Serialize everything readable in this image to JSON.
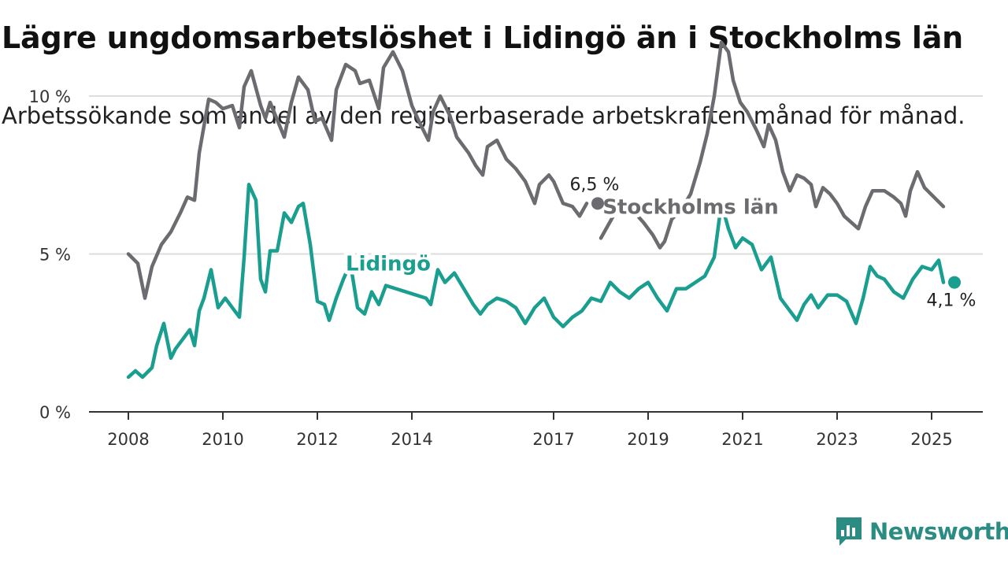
{
  "title": "Lägre ungdomsarbetslöshet i Lidingö än i Stockholms län",
  "subtitle": "Arbetssökande som andel av den registerbaserade arbetskraften månad för månad.",
  "brand": "Newsworthy",
  "colors": {
    "lidingo": "#1a9e8f",
    "stockholm": "#6b6b70",
    "grid": "#dddddd",
    "axis": "#333333",
    "brand": "#2a8c83"
  },
  "chart_data": {
    "type": "line",
    "x_unit": "year (decimal)",
    "y_unit": "percent",
    "xlim": [
      2007.8,
      2026.1
    ],
    "ylim": [
      0,
      12
    ],
    "y_ticks": [
      {
        "value": 0,
        "label": "0 %"
      },
      {
        "value": 5,
        "label": "5 %"
      },
      {
        "value": 10,
        "label": "10 %"
      }
    ],
    "x_ticks": [
      {
        "value": 2008,
        "label": "2008"
      },
      {
        "value": 2010,
        "label": "2010"
      },
      {
        "value": 2012,
        "label": "2012"
      },
      {
        "value": 2014,
        "label": "2014"
      },
      {
        "value": 2017,
        "label": "2017"
      },
      {
        "value": 2019,
        "label": "2019"
      },
      {
        "value": 2021,
        "label": "2021"
      },
      {
        "value": 2023,
        "label": "2023"
      },
      {
        "value": 2025,
        "label": "2025"
      }
    ],
    "grid": true,
    "series": [
      {
        "name": "Stockholms län",
        "color": "#6b6b70",
        "end_label": "6,5 %",
        "points": [
          [
            2008.0,
            5.0
          ],
          [
            2008.2,
            4.7
          ],
          [
            2008.35,
            3.6
          ],
          [
            2008.5,
            4.6
          ],
          [
            2008.7,
            5.3
          ],
          [
            2008.9,
            5.7
          ],
          [
            2009.1,
            6.3
          ],
          [
            2009.25,
            6.8
          ],
          [
            2009.4,
            6.7
          ],
          [
            2009.5,
            8.2
          ],
          [
            2009.7,
            9.9
          ],
          [
            2009.85,
            9.8
          ],
          [
            2010.0,
            9.6
          ],
          [
            2010.2,
            9.7
          ],
          [
            2010.35,
            9.0
          ],
          [
            2010.45,
            10.3
          ],
          [
            2010.6,
            10.8
          ],
          [
            2010.8,
            9.7
          ],
          [
            2010.9,
            9.3
          ],
          [
            2011.0,
            9.8
          ],
          [
            2011.3,
            8.7
          ],
          [
            2011.45,
            9.8
          ],
          [
            2011.6,
            10.6
          ],
          [
            2011.8,
            10.2
          ],
          [
            2011.95,
            9.2
          ],
          [
            2012.1,
            9.3
          ],
          [
            2012.3,
            8.6
          ],
          [
            2012.4,
            10.2
          ],
          [
            2012.6,
            11.0
          ],
          [
            2012.8,
            10.8
          ],
          [
            2012.9,
            10.4
          ],
          [
            2013.1,
            10.5
          ],
          [
            2013.3,
            9.6
          ],
          [
            2013.4,
            10.9
          ],
          [
            2013.6,
            11.4
          ],
          [
            2013.8,
            10.8
          ],
          [
            2014.0,
            9.7
          ],
          [
            2014.15,
            9.2
          ],
          [
            2014.35,
            8.6
          ],
          [
            2014.45,
            9.5
          ],
          [
            2014.6,
            10.0
          ],
          [
            2014.8,
            9.4
          ],
          [
            2014.95,
            8.7
          ],
          [
            2015.2,
            8.2
          ],
          [
            2015.35,
            7.8
          ],
          [
            2015.5,
            7.5
          ],
          [
            2015.6,
            8.4
          ],
          [
            2015.8,
            8.6
          ],
          [
            2016.0,
            8.0
          ],
          [
            2016.2,
            7.7
          ],
          [
            2016.4,
            7.3
          ],
          [
            2016.6,
            6.6
          ],
          [
            2016.7,
            7.2
          ],
          [
            2016.9,
            7.5
          ],
          [
            2017.0,
            7.3
          ],
          [
            2017.2,
            6.6
          ],
          [
            2017.4,
            6.5
          ],
          [
            2017.55,
            6.2
          ],
          [
            2017.7,
            6.6
          ]
        ]
      },
      {
        "name": "Lidingö",
        "color": "#1a9e8f",
        "end_label": "4,1 %",
        "points": [
          [
            2008.0,
            1.1
          ],
          [
            2008.15,
            1.3
          ],
          [
            2008.3,
            1.1
          ],
          [
            2008.5,
            1.4
          ],
          [
            2008.6,
            2.1
          ],
          [
            2008.75,
            2.8
          ],
          [
            2008.9,
            1.7
          ],
          [
            2009.0,
            2.0
          ],
          [
            2009.15,
            2.3
          ],
          [
            2009.3,
            2.6
          ],
          [
            2009.4,
            2.1
          ],
          [
            2009.5,
            3.2
          ],
          [
            2009.6,
            3.6
          ],
          [
            2009.75,
            4.5
          ],
          [
            2009.9,
            3.3
          ],
          [
            2010.05,
            3.6
          ],
          [
            2010.2,
            3.3
          ],
          [
            2010.35,
            3.0
          ],
          [
            2010.45,
            4.9
          ],
          [
            2010.55,
            7.2
          ],
          [
            2010.7,
            6.7
          ],
          [
            2010.8,
            4.2
          ],
          [
            2010.9,
            3.8
          ],
          [
            2011.0,
            5.1
          ],
          [
            2011.15,
            5.1
          ],
          [
            2011.3,
            6.3
          ],
          [
            2011.45,
            6.0
          ],
          [
            2011.6,
            6.5
          ],
          [
            2011.7,
            6.6
          ],
          [
            2011.85,
            5.3
          ],
          [
            2012.0,
            3.5
          ],
          [
            2012.15,
            3.4
          ],
          [
            2012.25,
            2.9
          ],
          [
            2012.4,
            3.6
          ],
          [
            2012.55,
            4.2
          ],
          [
            2012.7,
            4.7
          ],
          [
            2012.85,
            3.3
          ],
          [
            2013.0,
            3.1
          ],
          [
            2013.15,
            3.8
          ],
          [
            2013.3,
            3.4
          ],
          [
            2013.45,
            4.0
          ],
          [
            2014.3,
            3.6
          ],
          [
            2014.4,
            3.4
          ],
          [
            2014.55,
            4.5
          ],
          [
            2014.7,
            4.1
          ],
          [
            2014.9,
            4.4
          ],
          [
            2015.1,
            3.9
          ],
          [
            2015.3,
            3.4
          ],
          [
            2015.45,
            3.1
          ],
          [
            2015.6,
            3.4
          ],
          [
            2015.8,
            3.6
          ],
          [
            2016.0,
            3.5
          ],
          [
            2016.2,
            3.3
          ],
          [
            2016.4,
            2.8
          ],
          [
            2016.6,
            3.3
          ],
          [
            2016.8,
            3.6
          ],
          [
            2017.0,
            3.0
          ],
          [
            2017.2,
            2.7
          ],
          [
            2017.4,
            3.0
          ],
          [
            2017.6,
            3.2
          ],
          [
            2017.8,
            3.6
          ],
          [
            2018.0,
            3.5
          ],
          [
            2018.2,
            4.1
          ],
          [
            2018.4,
            3.8
          ],
          [
            2018.6,
            3.6
          ],
          [
            2018.8,
            3.9
          ],
          [
            2019.0,
            4.1
          ],
          [
            2019.2,
            3.6
          ],
          [
            2019.4,
            3.2
          ],
          [
            2019.6,
            3.9
          ],
          [
            2019.8,
            3.9
          ],
          [
            2020.0,
            4.1
          ],
          [
            2020.2,
            4.3
          ],
          [
            2020.4,
            4.9
          ],
          [
            2020.55,
            6.6
          ],
          [
            2020.7,
            5.8
          ],
          [
            2020.85,
            5.2
          ],
          [
            2021.0,
            5.5
          ],
          [
            2021.2,
            5.3
          ],
          [
            2021.4,
            4.5
          ],
          [
            2021.6,
            4.9
          ],
          [
            2021.8,
            3.6
          ],
          [
            2022.0,
            3.2
          ],
          [
            2022.15,
            2.9
          ],
          [
            2022.3,
            3.4
          ],
          [
            2022.45,
            3.7
          ],
          [
            2022.6,
            3.3
          ],
          [
            2022.8,
            3.7
          ],
          [
            2023.0,
            3.7
          ],
          [
            2023.2,
            3.5
          ],
          [
            2023.4,
            2.8
          ],
          [
            2023.55,
            3.6
          ],
          [
            2023.7,
            4.6
          ],
          [
            2023.85,
            4.3
          ],
          [
            2024.0,
            4.2
          ],
          [
            2024.2,
            3.8
          ],
          [
            2024.4,
            3.6
          ],
          [
            2024.6,
            4.2
          ],
          [
            2024.8,
            4.6
          ],
          [
            2025.0,
            4.5
          ],
          [
            2025.15,
            4.8
          ],
          [
            2025.25,
            4.1
          ]
        ]
      },
      {
        "name": "Stockholms län",
        "color": "#6b6b70",
        "end_label": "",
        "points": [
          [
            2018.0,
            5.5
          ],
          [
            2018.3,
            6.3
          ],
          [
            2018.6,
            6.5
          ],
          [
            2018.9,
            6.0
          ],
          [
            2019.1,
            5.6
          ],
          [
            2019.25,
            5.2
          ],
          [
            2019.35,
            5.4
          ],
          [
            2019.5,
            6.1
          ],
          [
            2019.7,
            6.4
          ],
          [
            2019.9,
            6.9
          ],
          [
            2020.1,
            7.9
          ],
          [
            2020.25,
            8.8
          ],
          [
            2020.4,
            10.0
          ],
          [
            2020.55,
            11.7
          ],
          [
            2020.7,
            11.4
          ],
          [
            2020.8,
            10.5
          ],
          [
            2020.95,
            9.8
          ],
          [
            2021.1,
            9.5
          ],
          [
            2021.3,
            8.9
          ],
          [
            2021.45,
            8.4
          ],
          [
            2021.55,
            9.1
          ],
          [
            2021.7,
            8.6
          ],
          [
            2021.85,
            7.6
          ],
          [
            2022.0,
            7.0
          ],
          [
            2022.15,
            7.5
          ],
          [
            2022.3,
            7.4
          ],
          [
            2022.45,
            7.2
          ],
          [
            2022.55,
            6.5
          ],
          [
            2022.7,
            7.1
          ],
          [
            2022.85,
            6.9
          ],
          [
            2023.0,
            6.6
          ],
          [
            2023.15,
            6.2
          ],
          [
            2023.3,
            6.0
          ],
          [
            2023.45,
            5.8
          ],
          [
            2023.6,
            6.5
          ],
          [
            2023.75,
            7.0
          ],
          [
            2024.0,
            7.0
          ],
          [
            2024.2,
            6.8
          ],
          [
            2024.35,
            6.6
          ],
          [
            2024.45,
            6.2
          ],
          [
            2024.55,
            7.0
          ],
          [
            2024.7,
            7.6
          ],
          [
            2024.85,
            7.1
          ],
          [
            2025.05,
            6.8
          ],
          [
            2025.25,
            6.5
          ]
        ]
      }
    ],
    "series_labels": [
      {
        "text": "Stockholms län",
        "x": 2019.9,
        "y": 6.5,
        "color": "#6b6b70"
      },
      {
        "text": "Lidingö",
        "x": 2013.5,
        "y": 4.7,
        "color": "#1a9e8f"
      }
    ]
  }
}
